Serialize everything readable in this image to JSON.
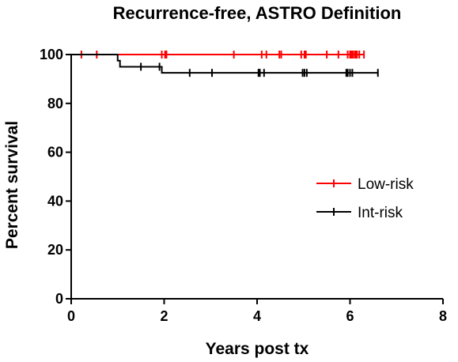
{
  "chart_data": {
    "type": "line",
    "title": "Recurrence-free, ASTRO Definition",
    "xlabel": "Years post tx",
    "ylabel": "Percent survival",
    "xlim": [
      0,
      8
    ],
    "ylim": [
      0,
      100
    ],
    "xticks": [
      "0",
      "2",
      "4",
      "6",
      "8"
    ],
    "yticks": [
      "0",
      "20",
      "40",
      "60",
      "80",
      "100"
    ],
    "grid": false,
    "legend_position": "right",
    "series": [
      {
        "name": "Low-risk",
        "color": "#ff0000",
        "steps": [
          [
            0,
            100
          ],
          [
            6.3,
            100
          ]
        ],
        "censored": [
          0.22,
          0.55,
          1.95,
          2.02,
          2.05,
          3.5,
          4.1,
          4.2,
          4.48,
          4.52,
          4.95,
          5.02,
          5.05,
          5.5,
          5.75,
          5.95,
          6.0,
          6.03,
          6.06,
          6.1,
          6.12,
          6.15,
          6.2,
          6.3
        ]
      },
      {
        "name": "Int-risk",
        "color": "#000000",
        "steps": [
          [
            0,
            100
          ],
          [
            1.0,
            97.5
          ],
          [
            1.05,
            95
          ],
          [
            1.95,
            92.5
          ],
          [
            6.6,
            92.5
          ]
        ],
        "censored": [
          1.5,
          1.9,
          2.55,
          3.03,
          4.03,
          4.06,
          4.15,
          4.98,
          5.02,
          5.07,
          5.92,
          5.95,
          6.0,
          6.05,
          6.6
        ]
      }
    ]
  }
}
